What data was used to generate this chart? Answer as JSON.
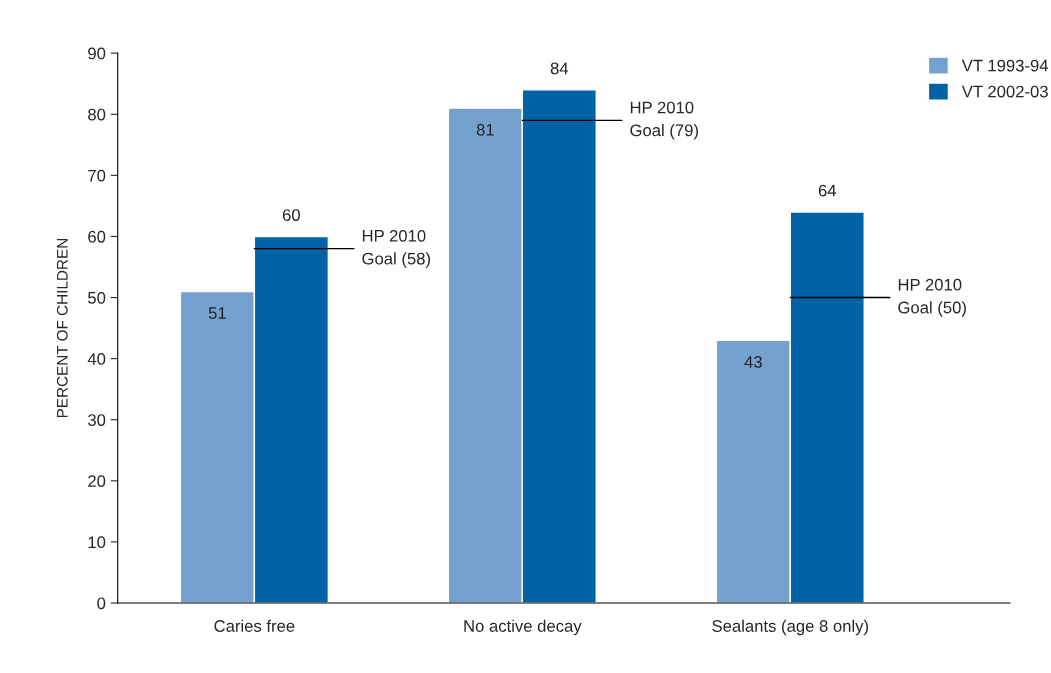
{
  "chart_data": {
    "type": "bar",
    "ylabel": "PERCENT OF CHILDREN",
    "categories": [
      "Caries free",
      "No active decay",
      "Sealants (age 8 only)"
    ],
    "series": [
      {
        "name": "VT 1993-94",
        "color": "#75a1cf",
        "values": [
          51,
          81,
          43
        ]
      },
      {
        "name": "VT 2002-03",
        "color": "#0063a6",
        "values": [
          60,
          84,
          64
        ]
      }
    ],
    "ylim": [
      0,
      90
    ],
    "yticks": [
      0,
      10,
      20,
      30,
      40,
      50,
      60,
      70,
      80,
      90
    ],
    "data_labels": true,
    "legend": "top right",
    "grid": false,
    "annotations": [
      {
        "text": "HP 2010\nGoal (58)",
        "x": "Caries free",
        "y": 58
      },
      {
        "text": "HP 2010\nGoal (79)",
        "x": "No active decay",
        "y": 79
      },
      {
        "text": "HP 2010\nGoal (50)",
        "x": "Sealants (age 8 only)",
        "y": 50
      }
    ]
  }
}
